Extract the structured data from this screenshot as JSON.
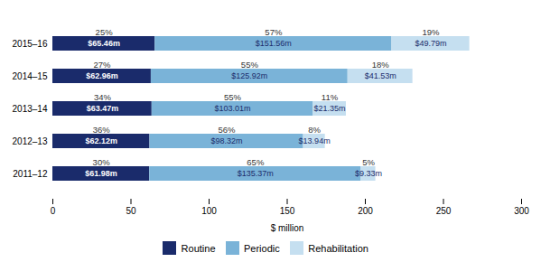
{
  "chart_data": {
    "type": "bar",
    "orientation": "horizontal",
    "stacked": true,
    "data_labels": true,
    "categories": [
      "2011–12",
      "2012–13",
      "2013–14",
      "2014–15",
      "2015–16"
    ],
    "series": [
      {
        "name": "Routine",
        "color": "#1a2b6b",
        "values": [
          61.98,
          62.12,
          63.47,
          62.96,
          65.46
        ],
        "value_labels": [
          "$61.98m",
          "$62.12m",
          "$63.47m",
          "$62.96m",
          "$65.46m"
        ],
        "share_labels": [
          "30%",
          "36%",
          "34%",
          "27%",
          "25%"
        ]
      },
      {
        "name": "Periodic",
        "color": "#7ab3d8",
        "values": [
          135.37,
          98.32,
          103.01,
          125.92,
          151.56
        ],
        "value_labels": [
          "$135.37m",
          "$98.32m",
          "$103.01m",
          "$125.92m",
          "$151.56m"
        ],
        "share_labels": [
          "65%",
          "56%",
          "55%",
          "55%",
          "57%"
        ]
      },
      {
        "name": "Rehabilitation",
        "color": "#c5dff0",
        "values": [
          9.33,
          13.94,
          21.35,
          41.53,
          49.79
        ],
        "value_labels": [
          "$9.33m",
          "$13.94m",
          "$21.35m",
          "$41.53m",
          "$49.79m"
        ],
        "share_labels": [
          "5%",
          "8%",
          "11%",
          "18%",
          "19%"
        ]
      }
    ],
    "xlabel": "$ million",
    "xlim": [
      0,
      300
    ],
    "xticks": [
      0,
      50,
      100,
      150,
      200,
      250,
      300
    ],
    "grid": false,
    "legend": "bottom"
  }
}
